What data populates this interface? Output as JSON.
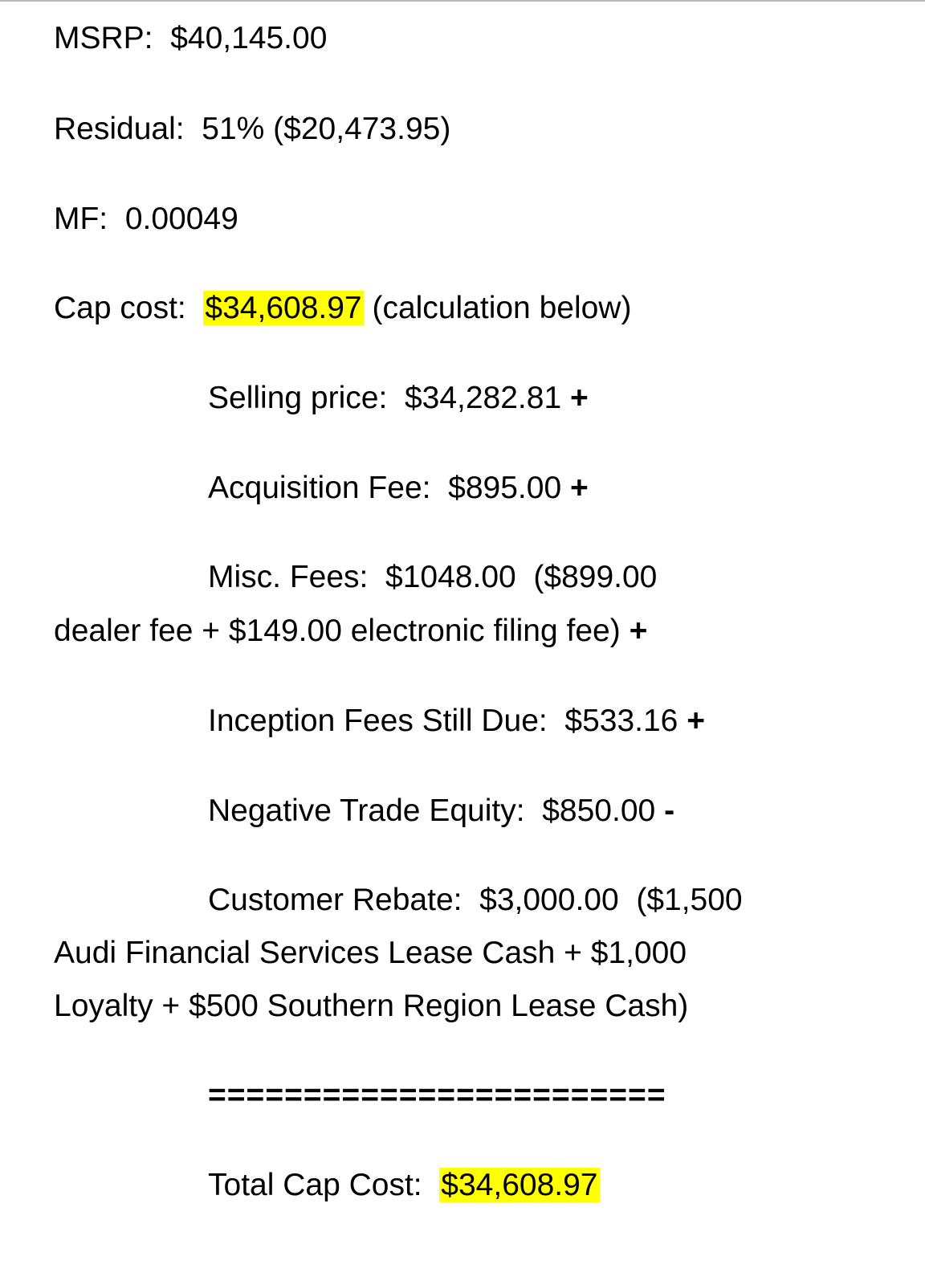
{
  "msrp": {
    "label": "MSRP:",
    "value": "$40,145.00"
  },
  "residual": {
    "label": "Residual:",
    "value": "51% ($20,473.95)"
  },
  "mf": {
    "label": "MF:",
    "value": "0.00049"
  },
  "cap_cost": {
    "label": "Cap cost:",
    "value": "$34,608.97",
    "note": "(calculation below)"
  },
  "selling_price": {
    "label": "Selling price:",
    "value": "$34,282.81",
    "op": "+"
  },
  "acquisition_fee": {
    "label": "Acquisition Fee:",
    "value": "$895.00",
    "op": "+"
  },
  "misc_fees": {
    "label": "Misc. Fees:",
    "value": "$1048.00",
    "detail_line1": "($899.00",
    "detail_line2": "dealer fee + $149.00 electronic filing fee)",
    "op": "+"
  },
  "inception_fees": {
    "label": "Inception Fees Still Due:",
    "value": "$533.16",
    "op": "+"
  },
  "negative_trade_equity": {
    "label": "Negative Trade Equity:",
    "value": "$850.00",
    "op": "-"
  },
  "customer_rebate": {
    "label": "Customer Rebate:",
    "value": "$3,000.00",
    "detail_line1": "($1,500",
    "detail_line2": "Audi Financial Services Lease Cash + $1,000",
    "detail_line3": "Loyalty + $500 Southern Region Lease Cash)"
  },
  "separator": "========================",
  "total_cap_cost": {
    "label": "Total Cap Cost:",
    "value": "$34,608.97"
  },
  "colors": {
    "highlight": "#ffff00",
    "text": "#000000"
  }
}
